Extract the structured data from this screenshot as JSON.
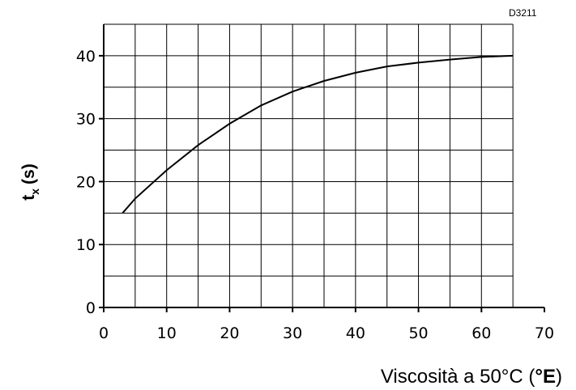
{
  "chart_data": {
    "type": "line",
    "code": "D3211",
    "xlabel": {
      "prefix": "Viscosità a 50°C (",
      "unit": "°E",
      "suffix": ")"
    },
    "ylabel": {
      "base": "t",
      "sub": "x",
      "unit": "(s)"
    },
    "xlim": [
      0,
      70
    ],
    "ylim": [
      0,
      45
    ],
    "x_ticks": [
      "0",
      "10",
      "20",
      "30",
      "40",
      "50",
      "60",
      "70"
    ],
    "y_ticks": [
      "0",
      "10",
      "20",
      "30",
      "40"
    ],
    "grid": true,
    "series": [
      {
        "x": [
          3,
          5,
          10,
          15,
          20,
          25,
          30,
          35,
          40,
          45,
          50,
          55,
          60,
          65
        ],
        "y": [
          15,
          17.3,
          21.8,
          25.8,
          29.2,
          32.1,
          34.3,
          36.0,
          37.3,
          38.3,
          38.9,
          39.4,
          39.8,
          40.0
        ]
      }
    ]
  }
}
